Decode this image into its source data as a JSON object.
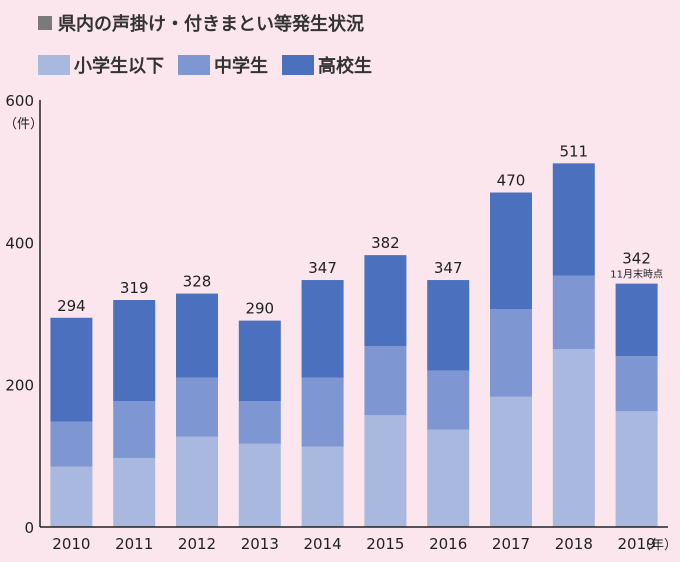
{
  "title": "県内の声掛け・付きまとい等発生状況",
  "legend": [
    "小学生以下",
    "中学生",
    "高校生"
  ],
  "colors": {
    "background": "#fbe6ee",
    "elementary": "#a9b8de",
    "junior_high": "#7e96d1",
    "high_school": "#4a70be"
  },
  "chart_data": {
    "type": "bar",
    "stacked": true,
    "categories": [
      "2010",
      "2011",
      "2012",
      "2013",
      "2014",
      "2015",
      "2016",
      "2017",
      "2018",
      "2019"
    ],
    "series": [
      {
        "name": "小学生以下",
        "values": [
          85,
          97,
          127,
          117,
          113,
          157,
          137,
          183,
          250,
          163
        ]
      },
      {
        "name": "中学生",
        "values": [
          63,
          80,
          83,
          60,
          97,
          97,
          83,
          123,
          103,
          77
        ]
      },
      {
        "name": "高校生",
        "values": [
          146,
          142,
          118,
          113,
          137,
          128,
          127,
          164,
          158,
          102
        ]
      }
    ],
    "totals": [
      "294",
      "319",
      "328",
      "290",
      "347",
      "382",
      "347",
      "470",
      "511",
      "342"
    ],
    "annotation": "11月末時点",
    "y_ticks": [
      "0",
      "200",
      "400",
      "600"
    ],
    "ylim": [
      0,
      600
    ],
    "y_unit": "（件）",
    "x_unit": "（年）",
    "grid": false
  }
}
